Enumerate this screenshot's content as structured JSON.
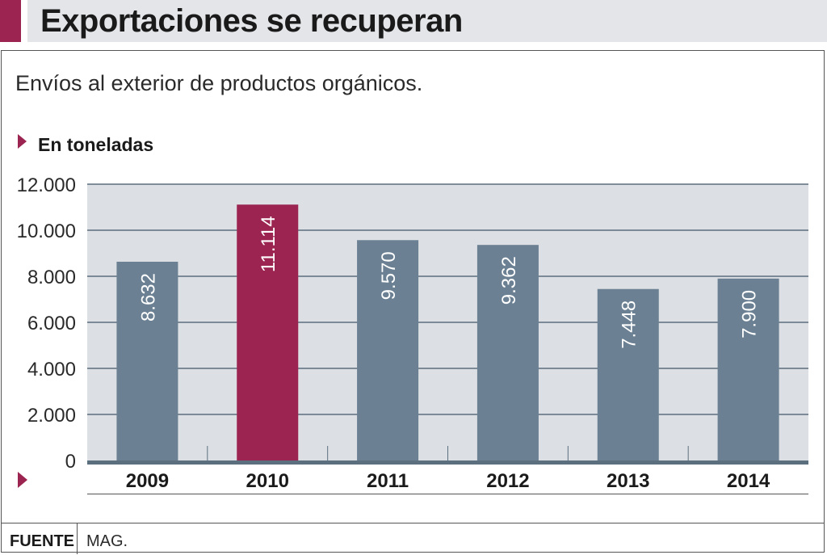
{
  "header": {
    "title": "Exportaciones se recuperan",
    "subtitle": "Envíos al exterior de productos orgánicos.",
    "unit_label": "En toneladas"
  },
  "footer": {
    "source_label": "FUENTE",
    "source_value": "MAG."
  },
  "colors": {
    "accent": "#9b2550",
    "bar": "#6b8193",
    "highlight_bar": "#9b2550",
    "plot_bg": "#dcdfe3",
    "gridline": "#5c6f7f",
    "baseline": "#5c6f7f"
  },
  "chart_data": {
    "type": "bar",
    "title": "Exportaciones se recuperan",
    "subtitle": "Envíos al exterior de productos orgánicos.",
    "ylabel": "En toneladas",
    "xlabel": "",
    "categories": [
      "2009",
      "2010",
      "2011",
      "2012",
      "2013",
      "2014"
    ],
    "values": [
      8632,
      11114,
      9570,
      9362,
      7448,
      7900
    ],
    "value_labels": [
      "8.632",
      "11.114",
      "9.570",
      "9.362",
      "7.448",
      "7.900"
    ],
    "highlight_category": "2010",
    "ylim": [
      0,
      12000
    ],
    "yticks": [
      0,
      2000,
      4000,
      6000,
      8000,
      10000,
      12000
    ],
    "ytick_labels": [
      "0",
      "2.000",
      "4.000",
      "6.000",
      "8.000",
      "10.000",
      "12.000"
    ],
    "grid": true,
    "legend": "none"
  }
}
